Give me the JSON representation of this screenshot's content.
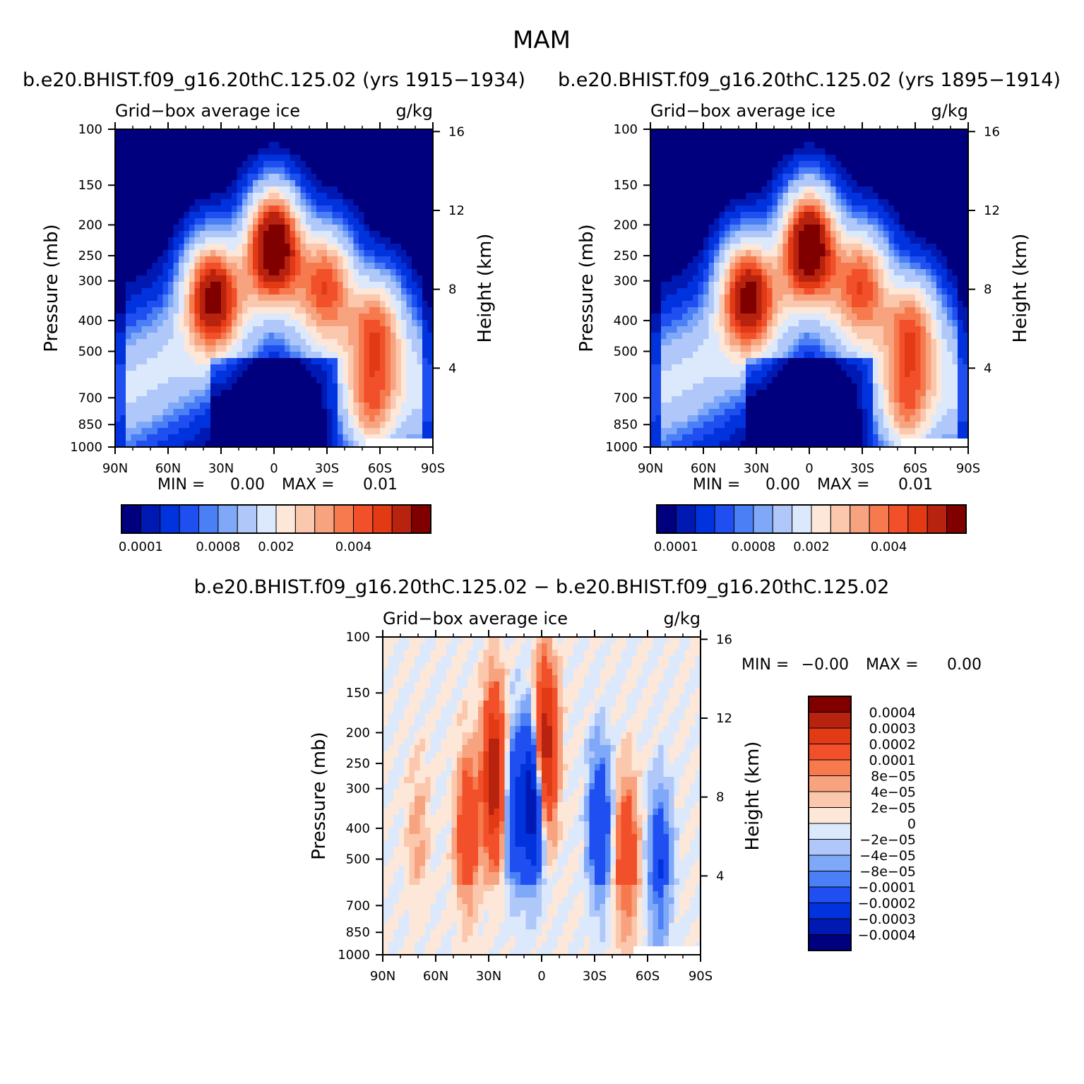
{
  "title": "MAM",
  "colors": {
    "palette": [
      "#00007f",
      "#0019b3",
      "#0033dd",
      "#1f4ff0",
      "#4a7ff5",
      "#7fa8f8",
      "#b0c8f9",
      "#dce8fc",
      "#fde7d8",
      "#fbc8ad",
      "#f8a37f",
      "#f67a4e",
      "#f2502a",
      "#e23a15",
      "#b82310",
      "#800000"
    ]
  },
  "chart_data": [
    {
      "id": "panel-1915",
      "type": "heatmap",
      "title": "b.e20.BHIST.f09_g16.20thC.125.02 (yrs 1915−1934)",
      "left_label": "Grid−box average ice",
      "right_label": "g/kg",
      "ylabel": "Pressure (mb)",
      "y2label": "Height (km)",
      "x_ticks": [
        "90N",
        "60N",
        "30N",
        "0",
        "30S",
        "60S",
        "90S"
      ],
      "x_values": [
        90,
        60,
        30,
        0,
        -30,
        -60,
        -90
      ],
      "y_ticks": [
        100,
        150,
        200,
        250,
        300,
        400,
        500,
        700,
        850,
        1000
      ],
      "y2_ticks": [
        16,
        12,
        8,
        4
      ],
      "min_label": "MIN =",
      "min_value": "0.00",
      "max_label": "MAX =",
      "max_value": "0.01",
      "colorbar_orientation": "horizontal",
      "colorbar_labels": [
        "0.0001",
        "0.0008",
        "0.002",
        "0.004"
      ],
      "features": [
        {
          "lat": 0,
          "p": 230,
          "value": 0.0065
        },
        {
          "lat": 35,
          "p": 330,
          "value": 0.0055
        },
        {
          "lat": -30,
          "p": 300,
          "value": 0.0035
        },
        {
          "lat": -58,
          "p": 420,
          "value": 0.003
        },
        {
          "lat": -55,
          "p": 750,
          "value": 0.003
        }
      ]
    },
    {
      "id": "panel-1895",
      "type": "heatmap",
      "title": "b.e20.BHIST.f09_g16.20thC.125.02 (yrs 1895−1914)",
      "left_label": "Grid−box average ice",
      "right_label": "g/kg",
      "ylabel": "Pressure (mb)",
      "y2label": "Height (km)",
      "x_ticks": [
        "90N",
        "60N",
        "30N",
        "0",
        "30S",
        "60S",
        "90S"
      ],
      "x_values": [
        90,
        60,
        30,
        0,
        -30,
        -60,
        -90
      ],
      "y_ticks": [
        100,
        150,
        200,
        250,
        300,
        400,
        500,
        700,
        850,
        1000
      ],
      "y2_ticks": [
        16,
        12,
        8,
        4
      ],
      "min_label": "MIN =",
      "min_value": "0.00",
      "max_label": "MAX =",
      "max_value": "0.01",
      "colorbar_orientation": "horizontal",
      "colorbar_labels": [
        "0.0001",
        "0.0008",
        "0.002",
        "0.004"
      ],
      "features": [
        {
          "lat": 0,
          "p": 230,
          "value": 0.0065
        },
        {
          "lat": 35,
          "p": 330,
          "value": 0.0055
        },
        {
          "lat": -30,
          "p": 300,
          "value": 0.0035
        },
        {
          "lat": -58,
          "p": 420,
          "value": 0.003
        },
        {
          "lat": -55,
          "p": 750,
          "value": 0.003
        }
      ]
    },
    {
      "id": "panel-diff",
      "type": "heatmap",
      "title": "b.e20.BHIST.f09_g16.20thC.125.02 − b.e20.BHIST.f09_g16.20thC.125.02",
      "left_label": "Grid−box average ice",
      "right_label": "g/kg",
      "ylabel": "Pressure (mb)",
      "y2label": "Height (km)",
      "x_ticks": [
        "90N",
        "60N",
        "30N",
        "0",
        "30S",
        "60S",
        "90S"
      ],
      "x_values": [
        90,
        60,
        30,
        0,
        -30,
        -60,
        -90
      ],
      "y_ticks": [
        100,
        150,
        200,
        250,
        300,
        400,
        500,
        700,
        850,
        1000
      ],
      "y2_ticks": [
        16,
        12,
        8,
        4
      ],
      "min_label": "MIN =",
      "min_value": "−0.00",
      "max_label": "MAX =",
      "max_value": "0.00",
      "colorbar_orientation": "vertical",
      "colorbar_labels": [
        "0.0004",
        "0.0003",
        "0.0002",
        "0.0001",
        "8e−05",
        "4e−05",
        "2e−05",
        "0",
        "−2e−05",
        "−4e−05",
        "−8e−05",
        "−0.0001",
        "−0.0002",
        "−0.0003",
        "−0.0004"
      ],
      "features": [
        {
          "lat": -2,
          "p": 220,
          "value": 0.0004
        },
        {
          "lat": 27,
          "p": 270,
          "value": 0.0004
        },
        {
          "lat": 42,
          "p": 420,
          "value": 0.0002
        },
        {
          "lat": 5,
          "p": 330,
          "value": -0.0004
        },
        {
          "lat": 15,
          "p": 350,
          "value": -0.0002
        },
        {
          "lat": -48,
          "p": 520,
          "value": 0.0002
        },
        {
          "lat": -33,
          "p": 400,
          "value": -0.0002
        },
        {
          "lat": -67,
          "p": 560,
          "value": -0.0002
        },
        {
          "lat": 70,
          "p": 420,
          "value": 5e-05
        }
      ]
    }
  ]
}
